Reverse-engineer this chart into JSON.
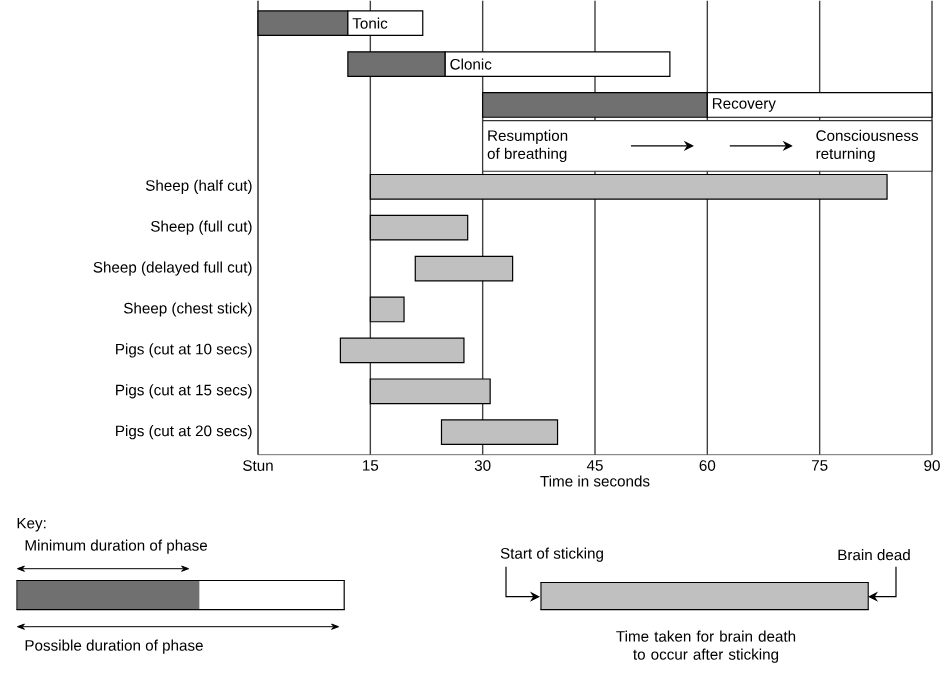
{
  "chart_data": {
    "type": "bar",
    "orientation": "horizontal",
    "categories": [
      null,
      null,
      null,
      null,
      "Sheep (half cut)",
      "Sheep (full cut)",
      "Sheep (delayed full cut)",
      "Sheep (chest stick)",
      "Pigs (cut at 10 secs)",
      "Pigs (cut at 15 secs)",
      "Pigs (cut at 20 secs)"
    ],
    "series": [
      {
        "color": "#707070",
        "base": [
          0,
          12,
          30,
          null,
          null,
          null,
          null,
          null,
          null,
          null,
          null
        ],
        "values": [
          12,
          13,
          30,
          null,
          null,
          null,
          null,
          null,
          null,
          null,
          null
        ]
      },
      {
        "color": "#ffffff",
        "base": [
          12,
          25,
          60,
          null,
          null,
          null,
          null,
          null,
          null,
          null,
          null
        ],
        "values": [
          10,
          30,
          30,
          null,
          null,
          null,
          null,
          null,
          null,
          null,
          null
        ]
      },
      {
        "color": "#c0c0c0",
        "base": [
          null,
          null,
          null,
          null,
          15,
          15,
          21,
          15,
          11,
          15,
          24.5
        ],
        "values": [
          null,
          null,
          null,
          null,
          69,
          13,
          13,
          4.5,
          16.5,
          16,
          15.5
        ]
      }
    ],
    "xlabel": "Time in seconds",
    "xlim": [
      0,
      90
    ],
    "xticks": [
      {
        "value": 0,
        "label": "Stun"
      },
      15,
      30,
      45,
      60,
      75,
      90
    ],
    "grid": "x",
    "annotations": [
      "Tonic",
      "Clonic",
      "Recovery",
      "Resumption of breathing",
      "Consciousness returning",
      "Key:",
      "Minimum duration of phase",
      "Possible duration of phase",
      "Start of sticking",
      "Brain dead",
      "Time taken for brain death to occur after sticking"
    ]
  }
}
